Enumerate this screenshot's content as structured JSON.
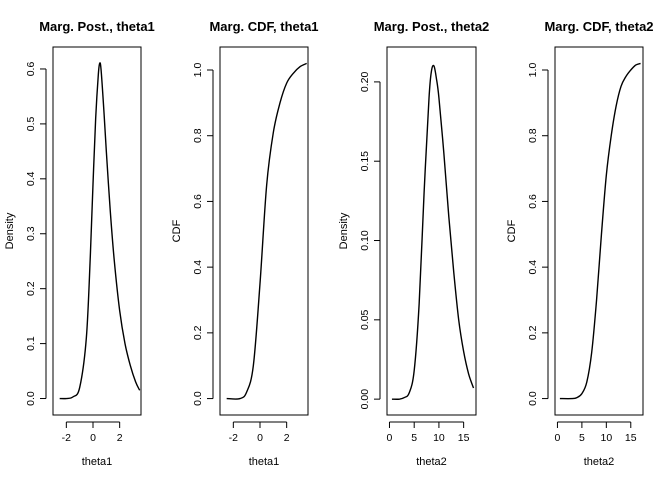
{
  "chart_data": [
    {
      "type": "line",
      "title": "Marg. Post., theta1",
      "xlabel": "theta1",
      "ylabel": "Density",
      "xlim": [
        -3.0,
        3.6
      ],
      "ylim": [
        -0.03,
        0.64
      ],
      "xticks": [
        -2,
        0,
        2
      ],
      "yticks": [
        0.0,
        0.1,
        0.2,
        0.3,
        0.4,
        0.5,
        0.6
      ],
      "series": [
        {
          "x": [
            -2.5,
            -2.0,
            -1.5,
            -1.0,
            -0.5,
            -0.2,
            0.0,
            0.2,
            0.4,
            0.5,
            0.6,
            0.8,
            1.0,
            1.3,
            1.6,
            2.0,
            2.4,
            2.8,
            3.2,
            3.5
          ],
          "y": [
            0.0,
            0.0,
            0.003,
            0.02,
            0.11,
            0.26,
            0.39,
            0.51,
            0.59,
            0.61,
            0.6,
            0.53,
            0.45,
            0.34,
            0.25,
            0.16,
            0.1,
            0.06,
            0.03,
            0.015
          ]
        }
      ]
    },
    {
      "type": "line",
      "title": "Marg. CDF, theta1",
      "xlabel": "theta1",
      "ylabel": "CDF",
      "xlim": [
        -3.0,
        3.6
      ],
      "ylim": [
        -0.05,
        1.07
      ],
      "xticks": [
        -2,
        0,
        2
      ],
      "yticks": [
        0.0,
        0.2,
        0.4,
        0.6,
        0.8,
        1.0
      ],
      "series": [
        {
          "x": [
            -2.5,
            -1.5,
            -1.0,
            -0.5,
            0.0,
            0.5,
            1.0,
            1.5,
            2.0,
            2.5,
            3.0,
            3.5
          ],
          "y": [
            0.0,
            0.0,
            0.02,
            0.1,
            0.35,
            0.65,
            0.81,
            0.9,
            0.96,
            0.99,
            1.01,
            1.02
          ]
        }
      ]
    },
    {
      "type": "line",
      "title": "Marg. Post., theta2",
      "xlabel": "theta2",
      "ylabel": "Density",
      "xlim": [
        -0.5,
        17.5
      ],
      "ylim": [
        -0.01,
        0.222
      ],
      "xticks": [
        0,
        5,
        10,
        15
      ],
      "yticks": [
        0.0,
        0.05,
        0.1,
        0.15,
        0.2
      ],
      "series": [
        {
          "x": [
            0.5,
            2.0,
            3.0,
            4.0,
            5.0,
            6.0,
            7.0,
            8.0,
            8.5,
            9.0,
            9.5,
            10.0,
            11.0,
            12.0,
            13.0,
            14.0,
            15.0,
            16.0,
            17.0
          ],
          "y": [
            0.0,
            0.0,
            0.001,
            0.004,
            0.018,
            0.06,
            0.13,
            0.19,
            0.207,
            0.21,
            0.202,
            0.19,
            0.155,
            0.115,
            0.08,
            0.05,
            0.03,
            0.016,
            0.007
          ]
        }
      ]
    },
    {
      "type": "line",
      "title": "Marg. CDF, theta2",
      "xlabel": "theta2",
      "ylabel": "CDF",
      "xlim": [
        -0.5,
        17.5
      ],
      "ylim": [
        -0.05,
        1.07
      ],
      "xticks": [
        0,
        5,
        10,
        15
      ],
      "yticks": [
        0.0,
        0.2,
        0.4,
        0.6,
        0.8,
        1.0
      ],
      "series": [
        {
          "x": [
            0.5,
            3.0,
            4.0,
            5.0,
            6.0,
            7.0,
            8.0,
            9.0,
            10.0,
            11.0,
            12.0,
            13.0,
            14.0,
            15.0,
            16.0,
            17.0
          ],
          "y": [
            0.0,
            0.0,
            0.003,
            0.015,
            0.05,
            0.14,
            0.3,
            0.5,
            0.68,
            0.8,
            0.89,
            0.95,
            0.98,
            1.0,
            1.015,
            1.02
          ]
        }
      ]
    }
  ]
}
